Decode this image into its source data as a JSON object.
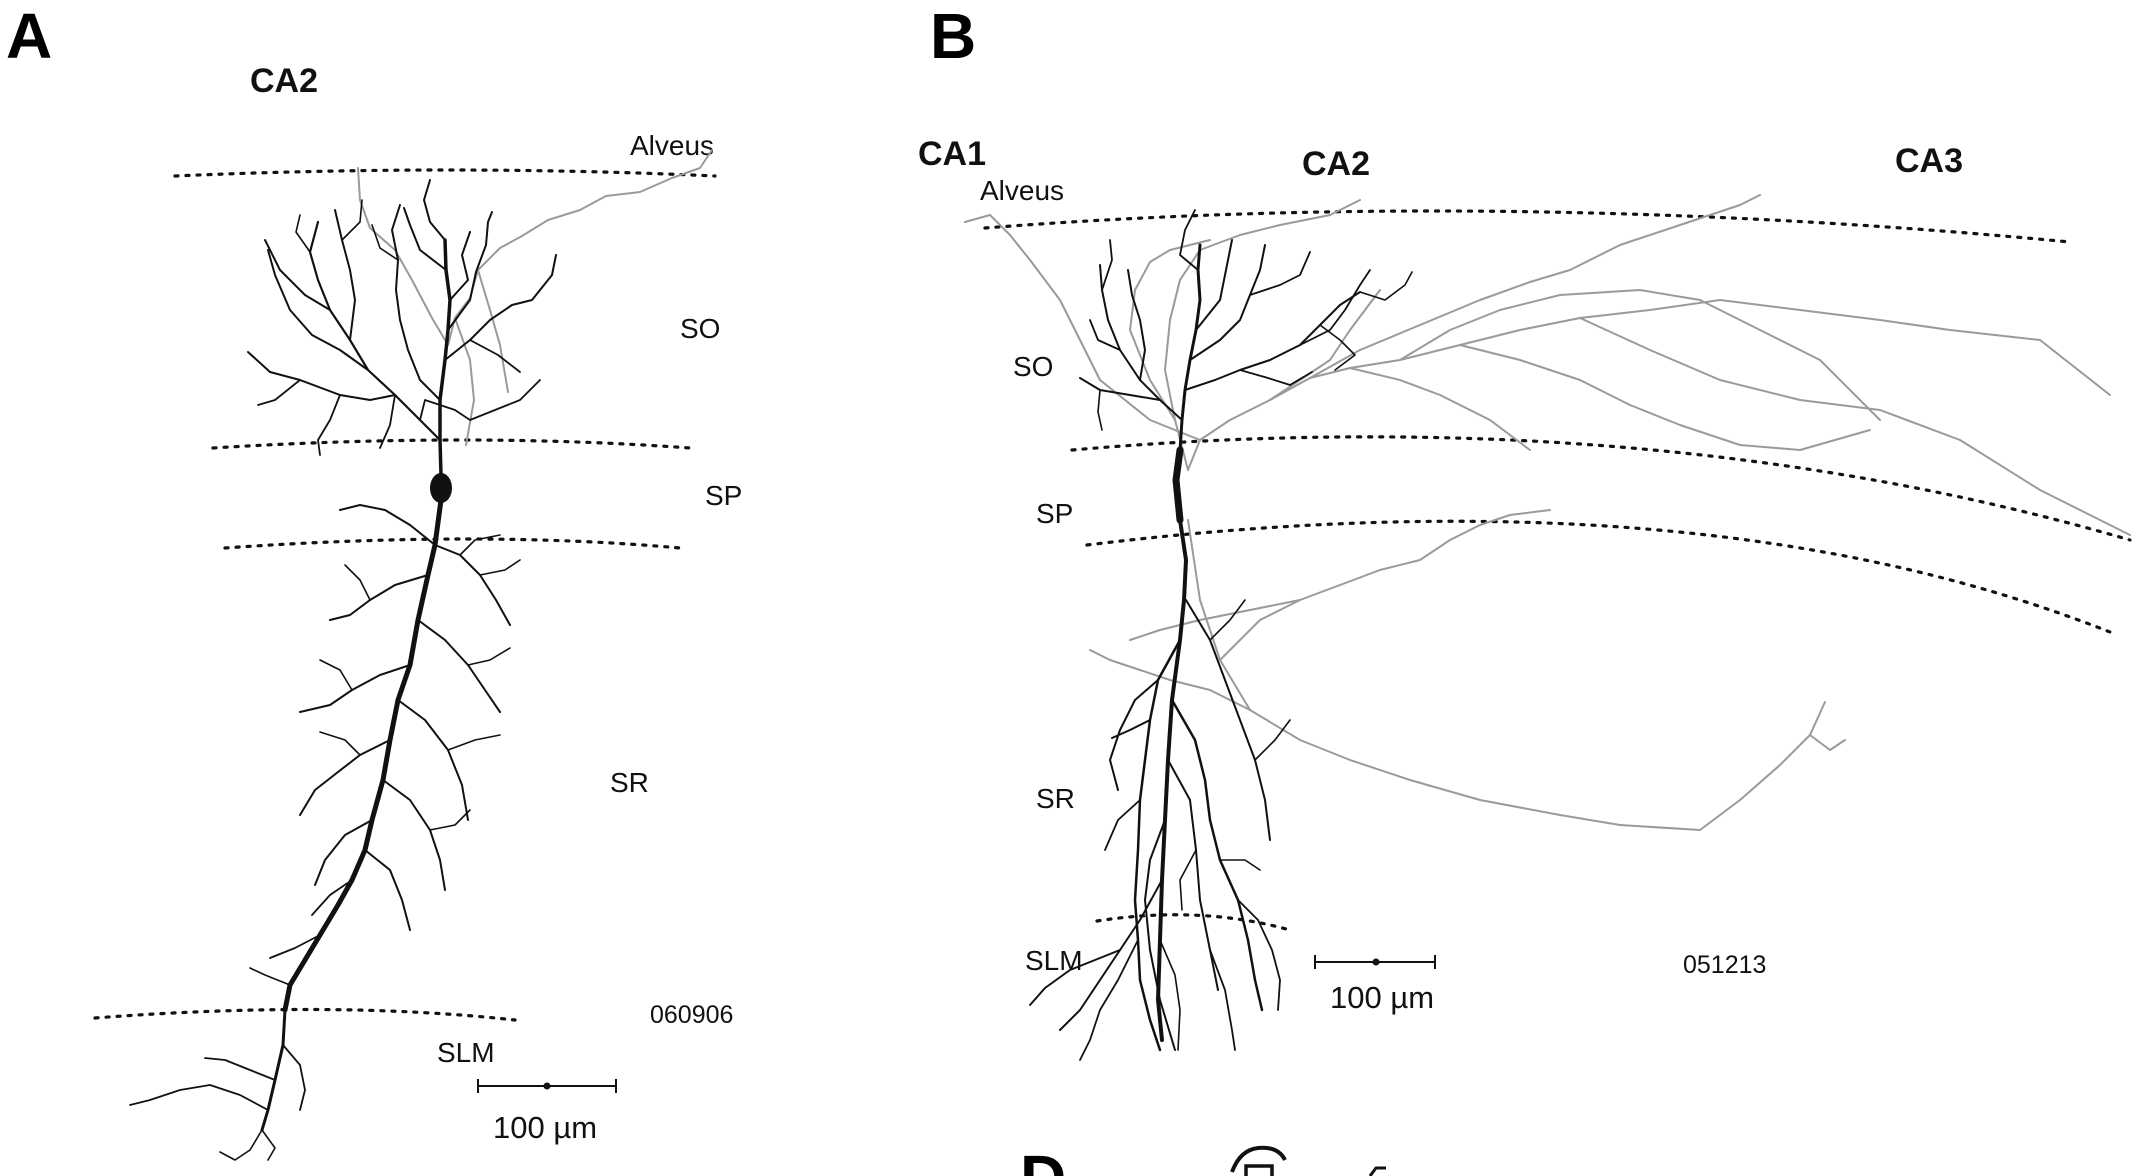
{
  "panels": {
    "A": {
      "letter": "A",
      "region": "CA2",
      "layers": {
        "alveus": "Alveus",
        "so": "SO",
        "sp": "SP",
        "sr": "SR",
        "slm": "SLM"
      },
      "cell_id": "060906",
      "scale_label": "100 µm"
    },
    "B": {
      "letter": "B",
      "regions": {
        "ca1": "CA1",
        "ca2": "CA2",
        "ca3": "CA3"
      },
      "layers": {
        "alveus": "Alveus",
        "so": "SO",
        "sp": "SP",
        "sr": "SR",
        "slm": "SLM"
      },
      "cell_id": "051213",
      "scale_label": "100 µm"
    },
    "D": {
      "letter": "D"
    }
  },
  "colors": {
    "dendrite": "#111111",
    "axon": "#9a9a9a",
    "background": "#ffffff"
  }
}
